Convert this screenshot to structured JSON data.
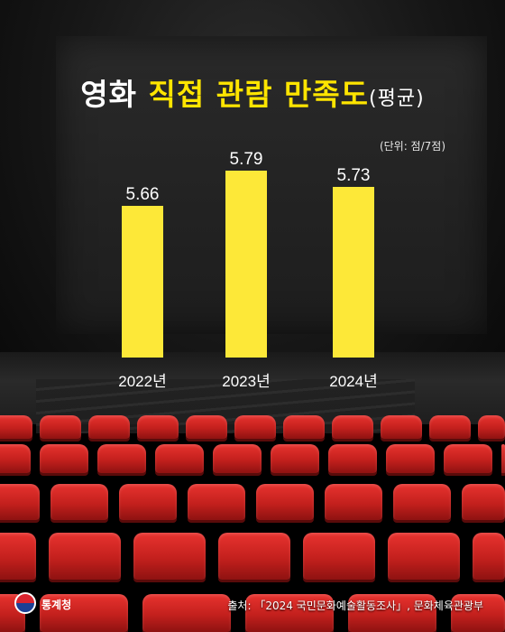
{
  "title": {
    "part1": "영화",
    "part2": "직접 관람 만족도",
    "part3": "(평균)"
  },
  "unit": "(단위: 점/7점)",
  "chart_data": {
    "type": "bar",
    "categories": [
      "2022년",
      "2023년",
      "2024년"
    ],
    "values": [
      5.66,
      5.79,
      5.73
    ],
    "value_labels": [
      "5.66",
      "5.79",
      "5.73"
    ],
    "ylim": [
      0,
      7
    ],
    "grid": false,
    "bar_color": "#fde838"
  },
  "footer": {
    "org": "통계청",
    "source": "출처: 「2024 국민문화예술활동조사」, 문화체육관광부"
  },
  "colors": {
    "accent": "#ffe500",
    "seat": "#d42a26"
  }
}
